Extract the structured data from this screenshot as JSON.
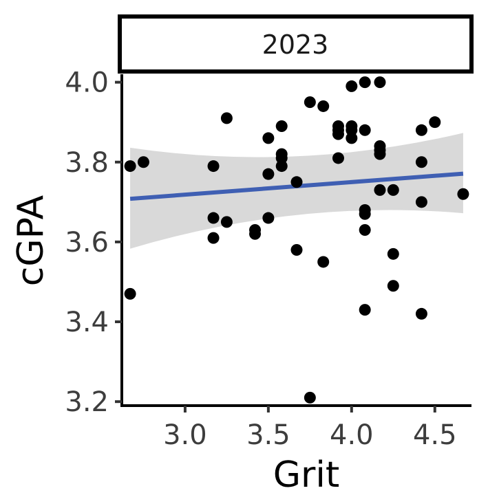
{
  "chart_data": {
    "type": "scatter",
    "facet_label": "2023",
    "xlabel": "Grit",
    "ylabel": "cGPA",
    "xlim": [
      2.62,
      4.72
    ],
    "ylim": [
      3.19,
      4.02
    ],
    "x_ticks": [
      3.0,
      3.5,
      4.0,
      4.5
    ],
    "x_tick_labels": [
      "3.0",
      "3.5",
      "4.0",
      "4.5"
    ],
    "y_ticks": [
      3.2,
      3.4,
      3.6,
      3.8,
      4.0
    ],
    "y_tick_labels": [
      "3.2",
      "3.4",
      "3.6",
      "3.8",
      "4.0"
    ],
    "grid": false,
    "colors": {
      "points": "#000000",
      "trend_line": "#3f5fb3",
      "confidence_band": "#d9d9d9",
      "facet_fill": "#ffffff",
      "facet_border": "#000000"
    },
    "points": [
      {
        "x": 2.67,
        "y": 3.79
      },
      {
        "x": 2.75,
        "y": 3.8
      },
      {
        "x": 2.67,
        "y": 3.47
      },
      {
        "x": 3.17,
        "y": 3.79
      },
      {
        "x": 3.17,
        "y": 3.66
      },
      {
        "x": 3.17,
        "y": 3.61
      },
      {
        "x": 3.25,
        "y": 3.91
      },
      {
        "x": 3.25,
        "y": 3.65
      },
      {
        "x": 3.42,
        "y": 3.63
      },
      {
        "x": 3.42,
        "y": 3.62
      },
      {
        "x": 3.5,
        "y": 3.86
      },
      {
        "x": 3.5,
        "y": 3.77
      },
      {
        "x": 3.5,
        "y": 3.66
      },
      {
        "x": 3.58,
        "y": 3.89
      },
      {
        "x": 3.58,
        "y": 3.82
      },
      {
        "x": 3.58,
        "y": 3.81
      },
      {
        "x": 3.58,
        "y": 3.79
      },
      {
        "x": 3.67,
        "y": 3.75
      },
      {
        "x": 3.67,
        "y": 3.58
      },
      {
        "x": 3.75,
        "y": 3.95
      },
      {
        "x": 3.75,
        "y": 3.21
      },
      {
        "x": 3.83,
        "y": 3.94
      },
      {
        "x": 3.83,
        "y": 3.55
      },
      {
        "x": 3.92,
        "y": 3.89
      },
      {
        "x": 3.92,
        "y": 3.88
      },
      {
        "x": 3.92,
        "y": 3.87
      },
      {
        "x": 3.92,
        "y": 3.81
      },
      {
        "x": 4.0,
        "y": 3.99
      },
      {
        "x": 4.0,
        "y": 3.89
      },
      {
        "x": 4.0,
        "y": 3.88
      },
      {
        "x": 4.0,
        "y": 3.86
      },
      {
        "x": 4.08,
        "y": 4.0
      },
      {
        "x": 4.08,
        "y": 3.88
      },
      {
        "x": 4.08,
        "y": 3.68
      },
      {
        "x": 4.08,
        "y": 3.67
      },
      {
        "x": 4.08,
        "y": 3.63
      },
      {
        "x": 4.08,
        "y": 3.43
      },
      {
        "x": 4.17,
        "y": 4.0
      },
      {
        "x": 4.17,
        "y": 3.84
      },
      {
        "x": 4.17,
        "y": 3.83
      },
      {
        "x": 4.17,
        "y": 3.82
      },
      {
        "x": 4.17,
        "y": 3.73
      },
      {
        "x": 4.25,
        "y": 3.73
      },
      {
        "x": 4.25,
        "y": 3.57
      },
      {
        "x": 4.25,
        "y": 3.49
      },
      {
        "x": 4.42,
        "y": 3.88
      },
      {
        "x": 4.42,
        "y": 3.8
      },
      {
        "x": 4.42,
        "y": 3.7
      },
      {
        "x": 4.42,
        "y": 3.42
      },
      {
        "x": 4.5,
        "y": 3.9
      },
      {
        "x": 4.67,
        "y": 3.72
      }
    ],
    "trend": {
      "x": [
        2.67,
        4.67
      ],
      "y": [
        3.708,
        3.771
      ],
      "ci_lower": [
        3.583,
        3.672
      ],
      "ci_upper": [
        3.836,
        3.873
      ]
    }
  }
}
